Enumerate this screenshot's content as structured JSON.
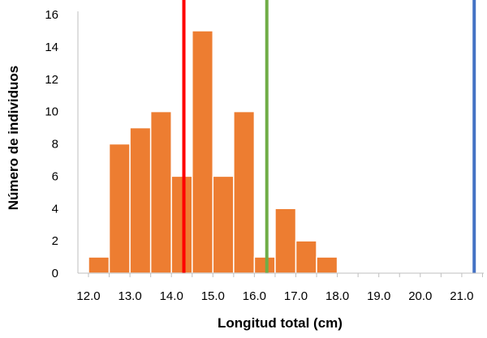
{
  "chart_data": {
    "type": "bar",
    "title": "",
    "xlabel": "Longitud total (cm)",
    "ylabel": "Número de individuos",
    "xlim": [
      12.0,
      21.5
    ],
    "ylim": [
      0,
      16
    ],
    "x_ticks": [
      "12.0",
      "13.0",
      "14.0",
      "15.0",
      "16.0",
      "17.0",
      "18.0",
      "19.0",
      "20.0",
      "21.0"
    ],
    "y_ticks": [
      0,
      2,
      4,
      6,
      8,
      10,
      12,
      14,
      16
    ],
    "bin_width": 0.5,
    "bins": [
      {
        "start": 12.0,
        "end": 12.5,
        "count": 1
      },
      {
        "start": 12.5,
        "end": 13.0,
        "count": 8
      },
      {
        "start": 13.0,
        "end": 13.5,
        "count": 9
      },
      {
        "start": 13.5,
        "end": 14.0,
        "count": 10
      },
      {
        "start": 14.0,
        "end": 14.5,
        "count": 6
      },
      {
        "start": 14.5,
        "end": 15.0,
        "count": 15
      },
      {
        "start": 15.0,
        "end": 15.5,
        "count": 6
      },
      {
        "start": 15.5,
        "end": 16.0,
        "count": 10
      },
      {
        "start": 16.0,
        "end": 16.5,
        "count": 1
      },
      {
        "start": 16.5,
        "end": 17.0,
        "count": 4
      },
      {
        "start": 17.0,
        "end": 17.5,
        "count": 2
      },
      {
        "start": 17.5,
        "end": 18.0,
        "count": 1
      }
    ],
    "bar_color": "#ED7D31",
    "bar_edge_color": "#ffffff",
    "vertical_lines": [
      {
        "x": 14.3,
        "color": "#FF0000"
      },
      {
        "x": 16.3,
        "color": "#70AD47"
      },
      {
        "x": 21.3,
        "color": "#4472C4"
      }
    ],
    "grid": false,
    "legend": "none"
  }
}
